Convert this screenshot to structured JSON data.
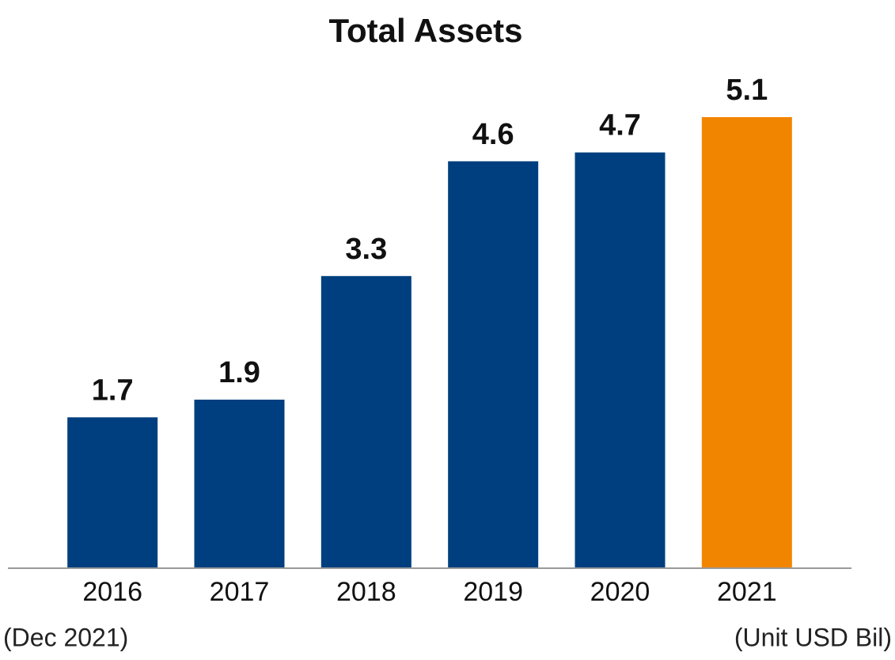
{
  "chart_data": {
    "type": "bar",
    "title": "Total Assets",
    "categories": [
      "2016",
      "2017",
      "2018",
      "2019",
      "2020",
      "2021"
    ],
    "values": [
      1.7,
      1.9,
      3.3,
      4.6,
      4.7,
      5.1
    ],
    "colors": [
      "#003f7f",
      "#003f7f",
      "#003f7f",
      "#003f7f",
      "#003f7f",
      "#f28500"
    ],
    "ylim": [
      0,
      5.1
    ],
    "annotations": [
      "(Dec 2021)",
      "(Unit USD Bil)"
    ]
  }
}
